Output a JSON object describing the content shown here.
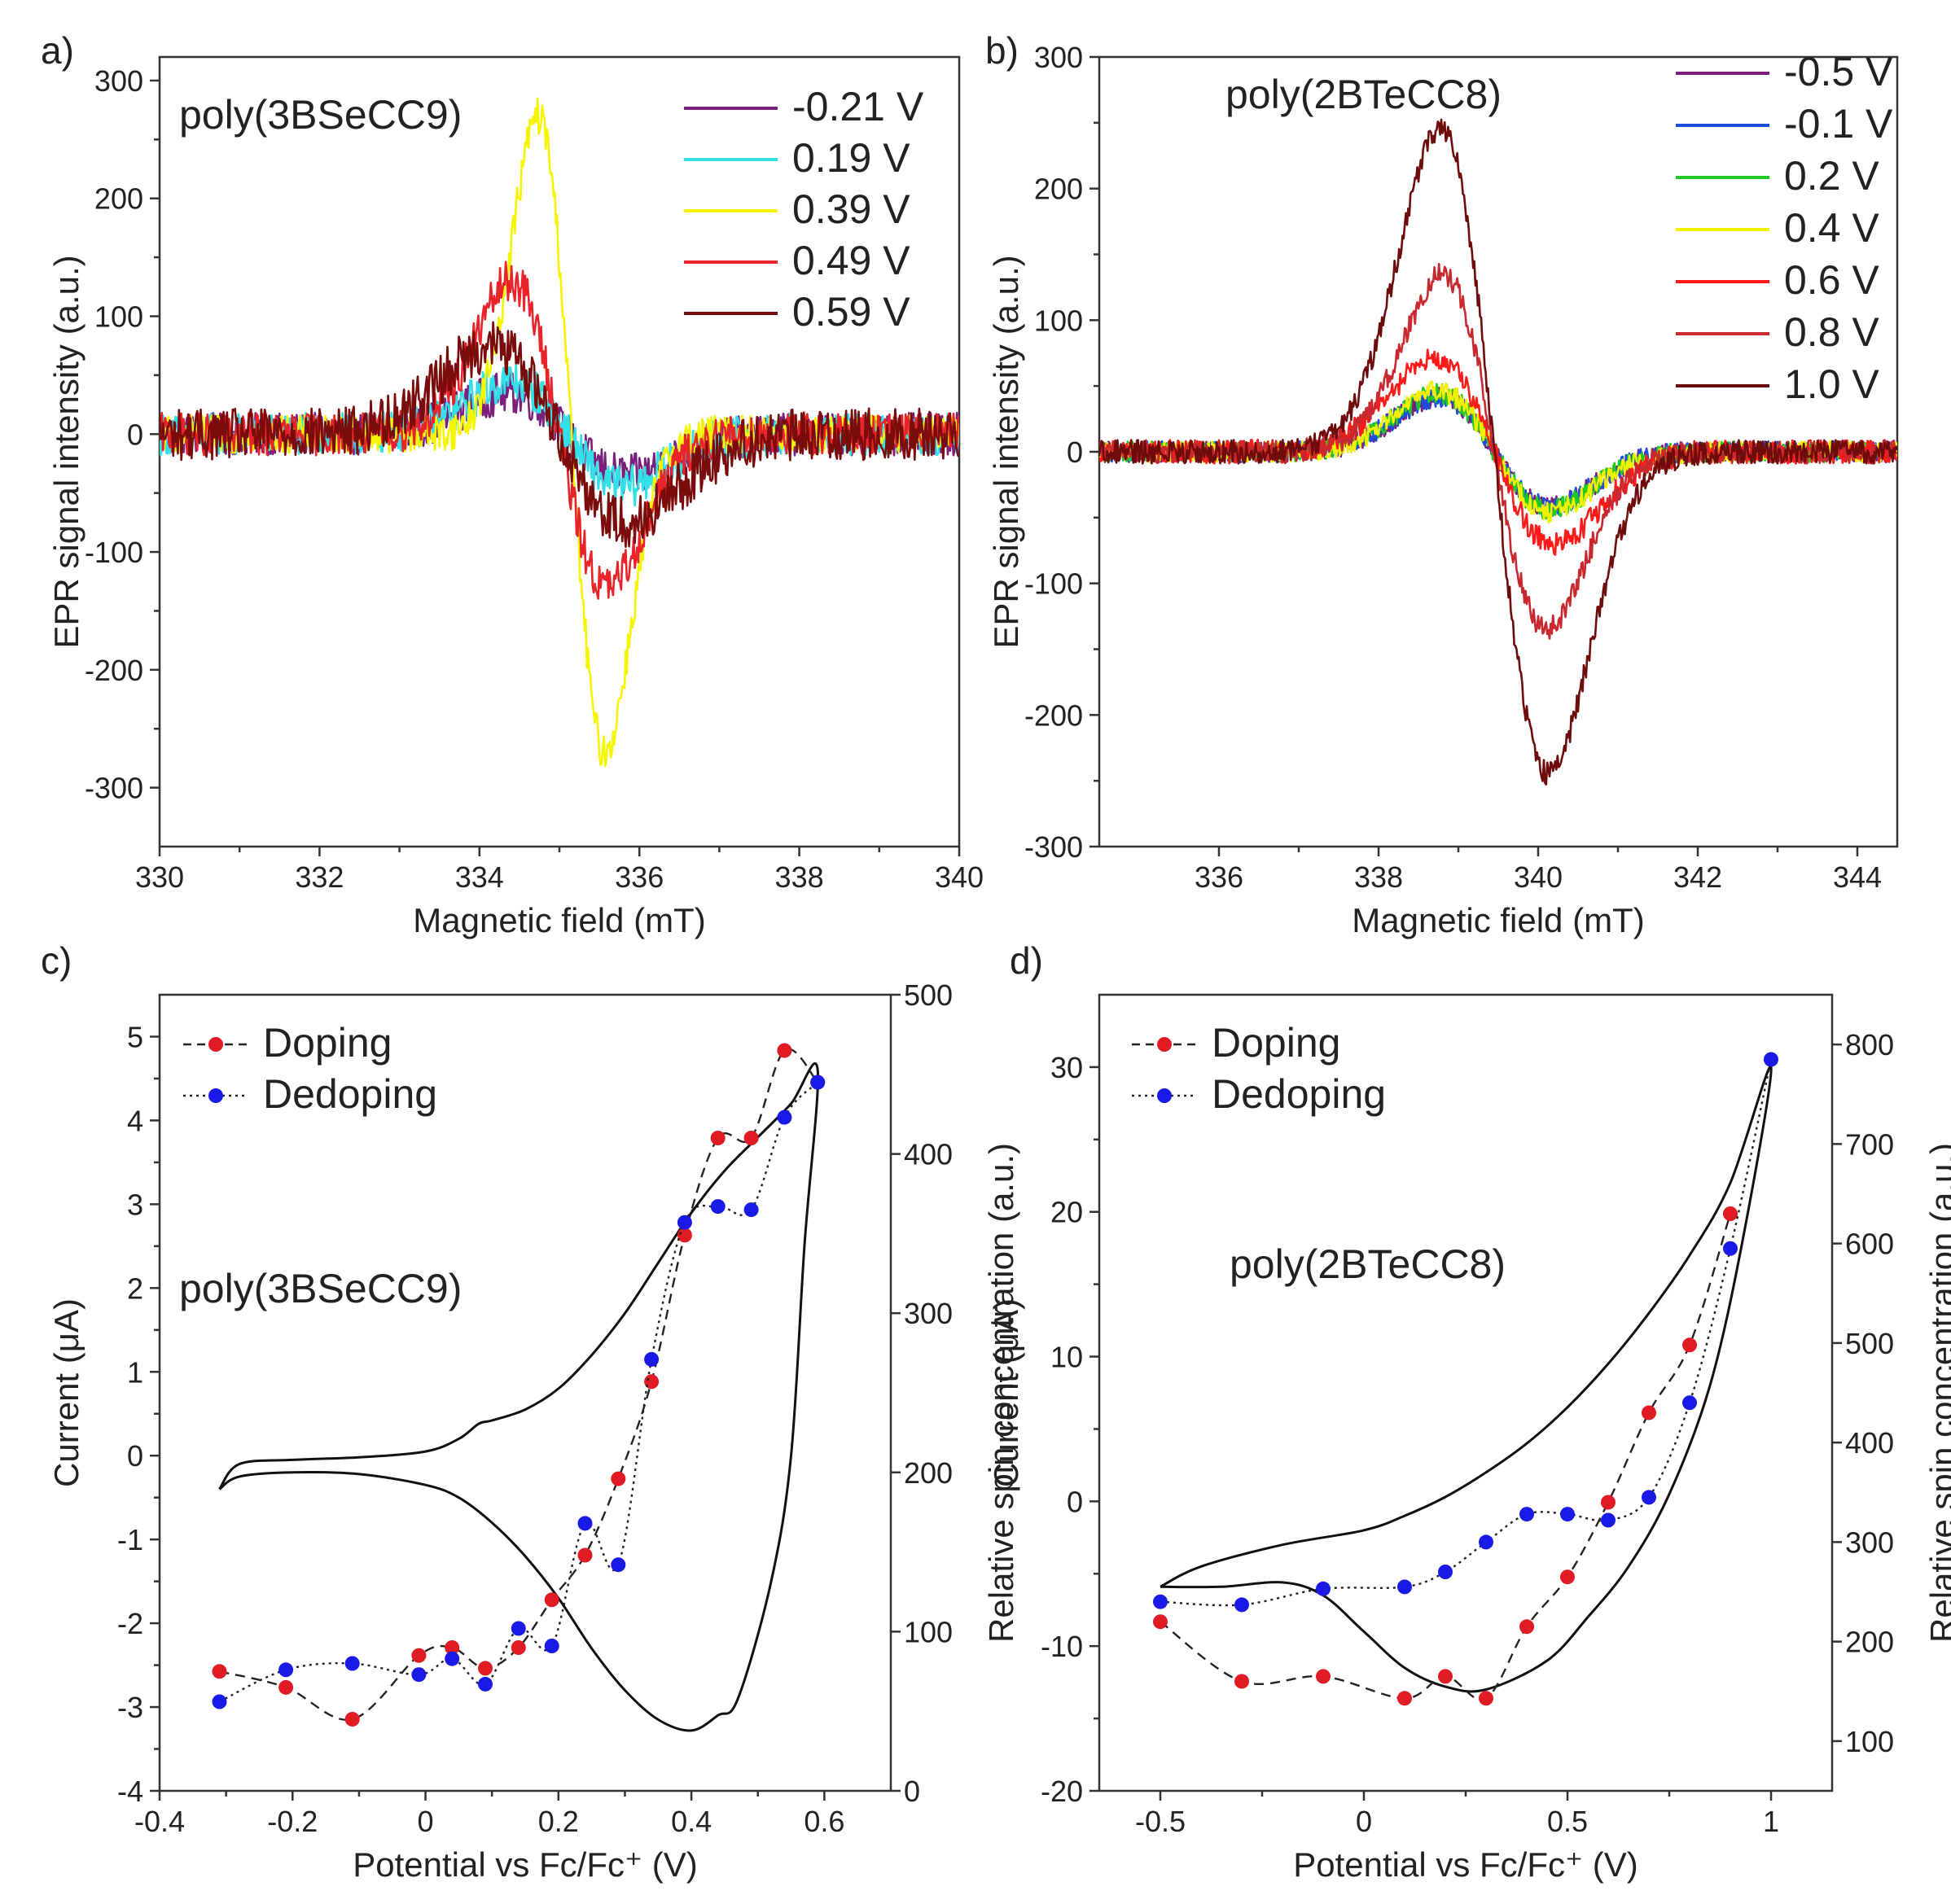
{
  "figure": {
    "panels": [
      "a)",
      "b)",
      "c)",
      "d)"
    ]
  },
  "chart_data": [
    {
      "id": "a",
      "type": "line",
      "panel_label": "a)",
      "title": "poly(3BSeCC9)",
      "xlabel": "Magnetic field (mT)",
      "ylabel": "EPR signal intensity (a.u.)",
      "xlim": [
        330,
        340
      ],
      "ylim": [
        -350,
        320
      ],
      "xticks": [
        330,
        332,
        334,
        336,
        338,
        340
      ],
      "yticks": [
        -300,
        -200,
        -100,
        0,
        100,
        200,
        300
      ],
      "legend_position": "top-right",
      "series": [
        {
          "name": "-0.21 V",
          "color": "#7b1f7d",
          "center": 335.1,
          "amplitude": 35,
          "width": 0.75,
          "noise": 18
        },
        {
          "name": "0.19 V",
          "color": "#33e0e8",
          "center": 335.1,
          "amplitude": 45,
          "width": 0.7,
          "noise": 18
        },
        {
          "name": "0.39 V",
          "color": "#f5f500",
          "center": 335.15,
          "amplitude": 270,
          "width": 0.42,
          "noise": 16
        },
        {
          "name": "0.49 V",
          "color": "#e8232a",
          "center": 335.0,
          "amplitude": 130,
          "width": 0.6,
          "noise": 18
        },
        {
          "name": "0.59 V",
          "color": "#7a0c0c",
          "center": 335.0,
          "amplitude": 75,
          "width": 0.85,
          "noise": 22
        }
      ]
    },
    {
      "id": "b",
      "type": "line",
      "panel_label": "b)",
      "title": "poly(2BTeCC8)",
      "xlabel": "Magnetic field (mT)",
      "ylabel": "EPR signal intensity (a.u.)",
      "xlim": [
        334.5,
        344.5
      ],
      "ylim": [
        -300,
        300
      ],
      "xticks": [
        336,
        338,
        340,
        342,
        344
      ],
      "yticks": [
        -300,
        -200,
        -100,
        0,
        100,
        200,
        300
      ],
      "legend_position": "top-right",
      "series": [
        {
          "name": "-0.5 V",
          "color": "#7b1f7d",
          "center": 339.45,
          "amplitude": 42,
          "width": 0.7,
          "noise": 8
        },
        {
          "name": "-0.1 V",
          "color": "#1a4de0",
          "center": 339.45,
          "amplitude": 42,
          "width": 0.7,
          "noise": 8
        },
        {
          "name": "0.2 V",
          "color": "#22c922",
          "center": 339.45,
          "amplitude": 44,
          "width": 0.7,
          "noise": 8
        },
        {
          "name": "0.4 V",
          "color": "#f0f000",
          "center": 339.45,
          "amplitude": 46,
          "width": 0.7,
          "noise": 8
        },
        {
          "name": "0.6 V",
          "color": "#ff1a1a",
          "center": 339.45,
          "amplitude": 70,
          "width": 0.75,
          "noise": 9
        },
        {
          "name": "0.8 V",
          "color": "#c8282e",
          "center": 339.45,
          "amplitude": 135,
          "width": 0.65,
          "noise": 9
        },
        {
          "name": "1.0 V",
          "color": "#6e0b0b",
          "center": 339.45,
          "amplitude": 245,
          "width": 0.68,
          "noise": 9
        }
      ]
    },
    {
      "id": "c",
      "type": "line",
      "panel_label": "c)",
      "title": "poly(3BSeCC9)",
      "xlabel": "Potential vs Fc/Fc⁺ (V)",
      "ylabel": "Current (μA)",
      "y2label": "Relative spin concentration (a.u.)",
      "xlim": [
        -0.4,
        0.7
      ],
      "ylim": [
        -4,
        5.5
      ],
      "y2lim": [
        0,
        500
      ],
      "xticks": [
        -0.4,
        -0.2,
        0.0,
        0.2,
        0.4,
        0.6
      ],
      "yticks": [
        -4,
        -3,
        -2,
        -1,
        0,
        1,
        2,
        3,
        4,
        5
      ],
      "y2ticks": [
        0,
        100,
        200,
        300,
        400,
        500
      ],
      "legend_position": "top-left",
      "cv_curve": {
        "upper": [
          [
            -0.31,
            -0.4
          ],
          [
            -0.28,
            -0.1
          ],
          [
            -0.2,
            -0.05
          ],
          [
            -0.1,
            -0.02
          ],
          [
            0.0,
            0.05
          ],
          [
            0.05,
            0.2
          ],
          [
            0.08,
            0.38
          ],
          [
            0.1,
            0.42
          ],
          [
            0.15,
            0.55
          ],
          [
            0.2,
            0.8
          ],
          [
            0.25,
            1.2
          ],
          [
            0.3,
            1.7
          ],
          [
            0.35,
            2.3
          ],
          [
            0.4,
            2.9
          ],
          [
            0.45,
            3.4
          ],
          [
            0.5,
            3.8
          ],
          [
            0.55,
            4.2
          ],
          [
            0.59,
            4.6
          ]
        ],
        "lower": [
          [
            0.59,
            4.6
          ],
          [
            0.57,
            2.5
          ],
          [
            0.55,
            0.0
          ],
          [
            0.52,
            -1.5
          ],
          [
            0.47,
            -2.9
          ],
          [
            0.44,
            -3.1
          ],
          [
            0.4,
            -3.28
          ],
          [
            0.35,
            -3.15
          ],
          [
            0.3,
            -2.8
          ],
          [
            0.25,
            -2.3
          ],
          [
            0.2,
            -1.7
          ],
          [
            0.15,
            -1.2
          ],
          [
            0.1,
            -0.8
          ],
          [
            0.05,
            -0.5
          ],
          [
            0.0,
            -0.35
          ],
          [
            -0.1,
            -0.22
          ],
          [
            -0.2,
            -0.2
          ],
          [
            -0.28,
            -0.25
          ],
          [
            -0.31,
            -0.4
          ]
        ]
      },
      "series": [
        {
          "name": "Doping",
          "color": "#e01b24",
          "style": "dashed",
          "x": [
            -0.31,
            -0.21,
            -0.11,
            -0.01,
            0.04,
            0.09,
            0.14,
            0.19,
            0.24,
            0.29,
            0.34,
            0.39,
            0.44,
            0.49,
            0.54,
            0.59
          ],
          "spin": [
            75,
            65,
            45,
            85,
            90,
            77,
            90,
            120,
            148,
            196,
            257,
            349,
            410,
            410,
            465,
            445
          ]
        },
        {
          "name": "Dedoping",
          "color": "#1a1ae6",
          "style": "dotted",
          "x": [
            -0.31,
            -0.21,
            -0.11,
            -0.01,
            0.04,
            0.09,
            0.14,
            0.19,
            0.24,
            0.29,
            0.34,
            0.39,
            0.44,
            0.49,
            0.54,
            0.59
          ],
          "spin": [
            56,
            76,
            80,
            73,
            83,
            67,
            102,
            91,
            168,
            142,
            271,
            357,
            367,
            365,
            423,
            445
          ]
        }
      ]
    },
    {
      "id": "d",
      "type": "line",
      "panel_label": "d)",
      "title": "poly(2BTeCC8)",
      "xlabel": "Potential vs Fc/Fc⁺ (V)",
      "ylabel": "Current (μA)",
      "y2label": "Relative spin concentration (a.u.)",
      "xlim": [
        -0.65,
        1.15
      ],
      "ylim": [
        -20,
        35
      ],
      "y2lim": [
        50,
        850
      ],
      "xticks": [
        -0.5,
        0.0,
        0.5,
        1.0
      ],
      "yticks": [
        -20,
        -10,
        0,
        10,
        20,
        30
      ],
      "y2ticks": [
        100,
        200,
        300,
        400,
        500,
        600,
        700,
        800
      ],
      "legend_position": "top-left",
      "cv_curve": {
        "upper": [
          [
            -0.5,
            -5.9
          ],
          [
            -0.4,
            -4.5
          ],
          [
            -0.2,
            -3.0
          ],
          [
            0.0,
            -2.0
          ],
          [
            0.1,
            -1.0
          ],
          [
            0.2,
            0.3
          ],
          [
            0.3,
            2.0
          ],
          [
            0.4,
            4.0
          ],
          [
            0.5,
            6.5
          ],
          [
            0.6,
            9.5
          ],
          [
            0.7,
            13.0
          ],
          [
            0.8,
            17.0
          ],
          [
            0.9,
            22.0
          ],
          [
            1.0,
            30.0
          ]
        ],
        "lower": [
          [
            1.0,
            30.0
          ],
          [
            0.93,
            18.0
          ],
          [
            0.85,
            8.0
          ],
          [
            0.75,
            0.5
          ],
          [
            0.65,
            -4.5
          ],
          [
            0.55,
            -8.0
          ],
          [
            0.45,
            -11.0
          ],
          [
            0.3,
            -13.0
          ],
          [
            0.2,
            -12.8
          ],
          [
            0.1,
            -11.5
          ],
          [
            0.0,
            -9.0
          ],
          [
            -0.1,
            -6.5
          ],
          [
            -0.2,
            -5.6
          ],
          [
            -0.35,
            -5.9
          ],
          [
            -0.5,
            -5.9
          ]
        ]
      },
      "series": [
        {
          "name": "Doping",
          "color": "#e01b24",
          "style": "dashed",
          "x": [
            -0.5,
            -0.3,
            -0.1,
            0.1,
            0.2,
            0.3,
            0.4,
            0.5,
            0.6,
            0.7,
            0.8,
            0.9
          ],
          "spin": [
            220,
            160,
            165,
            143,
            165,
            143,
            215,
            265,
            340,
            430,
            498,
            630
          ]
        },
        {
          "name": "Dedoping",
          "color": "#1a1ae6",
          "style": "dotted",
          "x": [
            -0.5,
            -0.3,
            -0.1,
            0.1,
            0.2,
            0.3,
            0.4,
            0.5,
            0.6,
            0.7,
            0.8,
            0.9,
            1.0
          ],
          "spin": [
            240,
            237,
            253,
            255,
            270,
            300,
            328,
            328,
            322,
            345,
            440,
            595,
            785
          ]
        }
      ]
    }
  ]
}
